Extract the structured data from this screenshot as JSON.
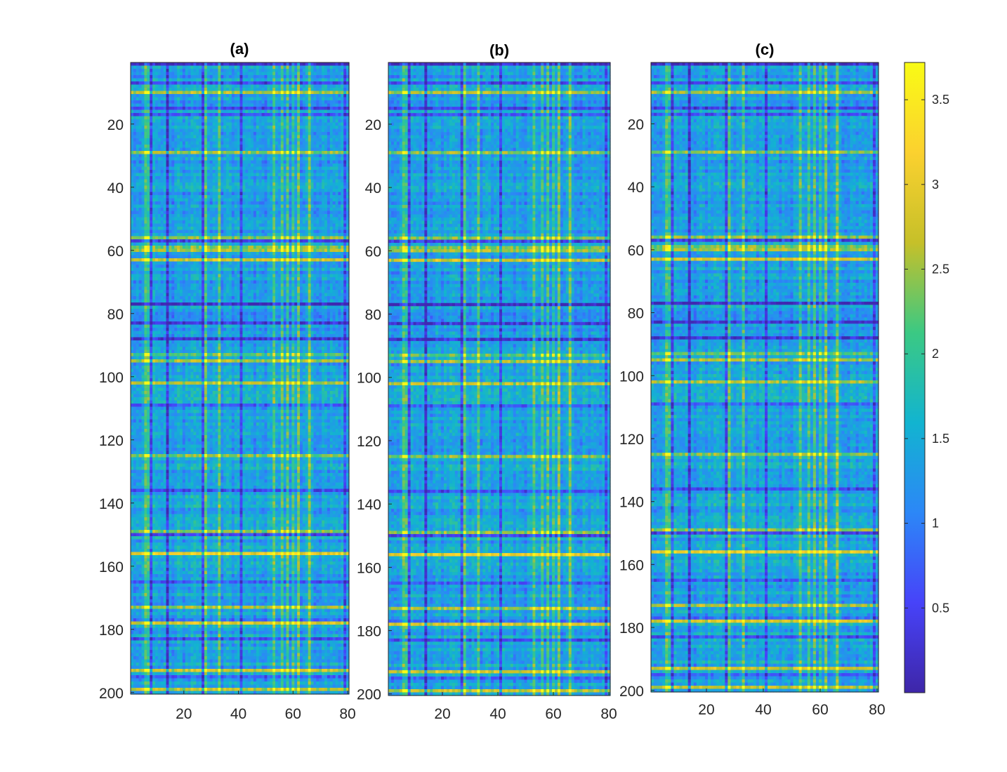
{
  "chart_data": {
    "type": "heatmap",
    "colormap": "parula",
    "panels": [
      {
        "title": "(a)",
        "rows": 200,
        "cols": 80,
        "xticks": [
          20,
          40,
          60,
          80
        ],
        "xtick_labels": [
          "20",
          "40",
          "60",
          "80"
        ],
        "yticks": [
          20,
          40,
          60,
          80,
          100,
          120,
          140,
          160,
          180,
          200
        ],
        "ytick_labels": [
          "20",
          "40",
          "60",
          "80",
          "100",
          "120",
          "140",
          "160",
          "180",
          "200"
        ],
        "value_range": [
          0.05,
          3.7
        ],
        "typical_value": 1.3
      },
      {
        "title": "(b)",
        "rows": 200,
        "cols": 80,
        "xticks": [
          20,
          40,
          60,
          80
        ],
        "xtick_labels": [
          "20",
          "40",
          "60",
          "80"
        ],
        "yticks": [
          20,
          40,
          60,
          80,
          100,
          120,
          140,
          160,
          180,
          200
        ],
        "ytick_labels": [
          "20",
          "40",
          "60",
          "80",
          "100",
          "120",
          "140",
          "160",
          "180",
          "200"
        ],
        "value_range": [
          0.05,
          3.7
        ],
        "typical_value": 1.3
      },
      {
        "title": "(c)",
        "rows": 200,
        "cols": 80,
        "xticks": [
          20,
          40,
          60,
          80
        ],
        "xtick_labels": [
          "20",
          "40",
          "60",
          "80"
        ],
        "yticks": [
          20,
          40,
          60,
          80,
          100,
          120,
          140,
          160,
          180,
          200
        ],
        "ytick_labels": [
          "20",
          "40",
          "60",
          "80",
          "100",
          "120",
          "140",
          "160",
          "180",
          "200"
        ],
        "value_range": [
          0.05,
          3.7
        ],
        "typical_value": 1.3
      }
    ],
    "colorbar": {
      "range": [
        0,
        3.72
      ],
      "ticks": [
        0.5,
        1,
        1.5,
        2,
        2.5,
        3,
        3.5
      ],
      "tick_labels": [
        "0.5",
        "1",
        "1.5",
        "2",
        "2.5",
        "3",
        "3.5"
      ],
      "colors": [
        "#3e26a8",
        "#4743f9",
        "#2c87f7",
        "#12b4d0",
        "#3bc983",
        "#c6c029",
        "#fbd12f",
        "#f9fb15"
      ]
    },
    "grid": false,
    "ydir": "reverse"
  }
}
